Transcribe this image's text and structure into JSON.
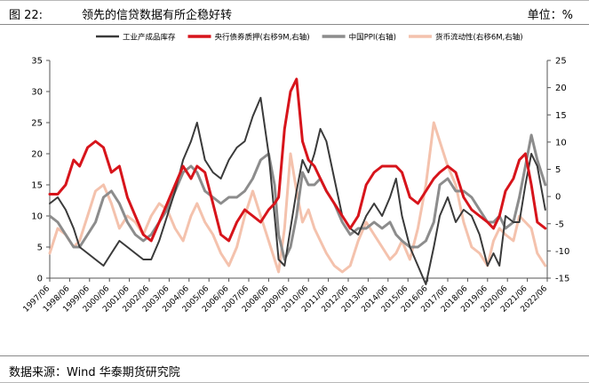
{
  "header": {
    "figure_number": "图 22:",
    "title": "领先的信贷数据有所企稳好转",
    "unit": "单位：%"
  },
  "footer": {
    "source": "数据来源：Wind 华泰期货研究院"
  },
  "colors": {
    "industrial": "#3a3a3a",
    "mlf": "#d7141b",
    "ppi": "#8c8c8c",
    "liquidity": "#f4c2ad"
  },
  "chart_data": {
    "type": "line",
    "legend_position": "top",
    "x_tick_labels": [
      "1997/06",
      "1998/06",
      "1999/06",
      "2000/06",
      "2001/06",
      "2002/06",
      "2003/06",
      "2004/06",
      "2005/06",
      "2006/06",
      "2007/06",
      "2008/06",
      "2009/06",
      "2010/06",
      "2011/06",
      "2012/06",
      "2013/06",
      "2014/06",
      "2015/06",
      "2016/06",
      "2017/06",
      "2018/06",
      "2019/06",
      "2020/06",
      "2021/06",
      "2022/06"
    ],
    "x_range": [
      1997.5,
      2022.5
    ],
    "y_left": {
      "min": 0,
      "max": 35,
      "ticks": [
        "0",
        "5",
        "10",
        "15",
        "20",
        "25",
        "30",
        "35"
      ]
    },
    "y_right": {
      "min": -15,
      "max": 25,
      "ticks": [
        "-15",
        "-10",
        "-5",
        "0",
        "5",
        "10",
        "15",
        "20",
        "25"
      ]
    },
    "series": [
      {
        "name": "工业产成品库存",
        "axis": "left",
        "color": "#3a3a3a",
        "width": 2.0,
        "x": [
          1997.5,
          1997.9,
          1998.3,
          1998.7,
          1999.0,
          1999.4,
          1999.8,
          2000.2,
          2000.6,
          2001.0,
          2001.4,
          2001.8,
          2002.2,
          2002.6,
          2003.0,
          2003.4,
          2003.8,
          2004.2,
          2004.6,
          2004.9,
          2005.3,
          2005.7,
          2006.1,
          2006.5,
          2006.9,
          2007.3,
          2007.7,
          2008.1,
          2008.5,
          2008.8,
          2009.0,
          2009.3,
          2009.6,
          2009.9,
          2010.2,
          2010.5,
          2010.8,
          2011.1,
          2011.4,
          2011.8,
          2012.2,
          2012.6,
          2013.0,
          2013.4,
          2013.8,
          2014.2,
          2014.6,
          2014.9,
          2015.2,
          2015.6,
          2016.0,
          2016.4,
          2016.8,
          2017.1,
          2017.5,
          2017.9,
          2018.3,
          2018.7,
          2019.1,
          2019.5,
          2019.8,
          2020.1,
          2020.4,
          2020.8,
          2021.1,
          2021.4,
          2021.7,
          2022.0,
          2022.4
        ],
        "y": [
          12,
          13,
          11,
          8,
          5,
          4,
          3,
          2,
          4,
          6,
          5,
          4,
          3,
          3,
          6,
          10,
          14,
          19,
          22,
          25,
          19,
          17,
          16,
          19,
          21,
          22,
          26,
          29,
          20,
          10,
          3,
          2,
          8,
          14,
          19,
          17,
          20,
          24,
          22,
          16,
          10,
          8,
          7,
          10,
          12,
          10,
          13,
          16,
          10,
          5,
          2,
          -1,
          5,
          10,
          13,
          9,
          11,
          10,
          7,
          2,
          4,
          2,
          10,
          9,
          9,
          15,
          20,
          18,
          11
        ]
      },
      {
        "name": "央行债券质押(右移9M,右轴)",
        "axis": "left",
        "color": "#d7141b",
        "width": 3.0,
        "x": [
          1997.5,
          1997.9,
          1998.3,
          1998.7,
          1999.0,
          1999.4,
          1999.8,
          2000.2,
          2000.6,
          2001.0,
          2001.4,
          2001.8,
          2002.2,
          2002.6,
          2003.0,
          2003.4,
          2003.8,
          2004.2,
          2004.6,
          2004.9,
          2005.3,
          2005.7,
          2006.1,
          2006.5,
          2006.9,
          2007.3,
          2007.7,
          2008.1,
          2008.5,
          2008.8,
          2009.0,
          2009.3,
          2009.6,
          2009.9,
          2010.2,
          2010.5,
          2010.8,
          2011.1,
          2011.4,
          2011.8,
          2012.2,
          2012.6,
          2013.0,
          2013.4,
          2013.8,
          2014.2,
          2014.6,
          2014.9,
          2015.2,
          2015.6,
          2016.0,
          2016.4,
          2016.8,
          2017.1,
          2017.5,
          2017.9,
          2018.3,
          2018.7,
          2019.1,
          2019.5,
          2019.8,
          2020.1,
          2020.4,
          2020.8,
          2021.1,
          2021.4,
          2021.7,
          2022.0,
          2022.4
        ],
        "y": [
          13.5,
          13.5,
          15,
          19,
          18,
          21,
          22,
          21,
          17,
          18,
          13,
          10,
          7,
          6,
          9,
          12,
          15,
          18,
          16,
          18,
          17,
          12,
          7,
          6,
          9,
          11,
          10,
          9,
          11,
          12,
          13,
          24,
          30,
          32,
          22,
          19,
          18,
          16,
          14,
          12,
          10,
          8,
          10,
          15,
          17,
          18,
          18,
          18,
          17,
          13,
          12,
          14,
          16,
          17,
          18,
          17,
          13,
          11,
          10,
          9,
          8,
          10,
          14,
          16,
          19,
          20,
          15,
          9,
          8
        ]
      },
      {
        "name": "中国PPI(右轴)",
        "axis": "left",
        "color": "#8c8c8c",
        "width": 3.0,
        "x": [
          1997.5,
          1997.9,
          1998.3,
          1998.7,
          1999.0,
          1999.4,
          1999.8,
          2000.2,
          2000.6,
          2001.0,
          2001.4,
          2001.8,
          2002.2,
          2002.6,
          2003.0,
          2003.4,
          2003.8,
          2004.2,
          2004.6,
          2004.9,
          2005.3,
          2005.7,
          2006.1,
          2006.5,
          2006.9,
          2007.3,
          2007.7,
          2008.1,
          2008.5,
          2008.8,
          2009.0,
          2009.3,
          2009.6,
          2009.9,
          2010.2,
          2010.5,
          2010.8,
          2011.1,
          2011.4,
          2011.8,
          2012.2,
          2012.6,
          2013.0,
          2013.4,
          2013.8,
          2014.2,
          2014.6,
          2014.9,
          2015.2,
          2015.6,
          2016.0,
          2016.4,
          2016.8,
          2017.1,
          2017.5,
          2017.9,
          2018.3,
          2018.7,
          2019.1,
          2019.5,
          2019.8,
          2020.1,
          2020.4,
          2020.8,
          2021.1,
          2021.4,
          2021.7,
          2022.0,
          2022.4
        ],
        "y": [
          10,
          9,
          7,
          5,
          5,
          7,
          9,
          13,
          14,
          12,
          9,
          7,
          6,
          7,
          9,
          11,
          14,
          17,
          18,
          17,
          14,
          13,
          12,
          13,
          13,
          14,
          16,
          19,
          20,
          15,
          7,
          3,
          5,
          10,
          17,
          15,
          15,
          16,
          14,
          12,
          9,
          7,
          8,
          8,
          9,
          8,
          9,
          7,
          6,
          5,
          5,
          6,
          9,
          15,
          16,
          14,
          14,
          13,
          11,
          9,
          9,
          10,
          8,
          9,
          13,
          18,
          23,
          19,
          15
        ]
      },
      {
        "name": "货币流动性(右移6M,右轴)",
        "axis": "left",
        "color": "#f4c2ad",
        "width": 3.0,
        "x": [
          1997.5,
          1997.9,
          1998.3,
          1998.7,
          1999.0,
          1999.4,
          1999.8,
          2000.2,
          2000.6,
          2001.0,
          2001.4,
          2001.8,
          2002.2,
          2002.6,
          2003.0,
          2003.4,
          2003.8,
          2004.2,
          2004.6,
          2004.9,
          2005.3,
          2005.7,
          2006.1,
          2006.5,
          2006.9,
          2007.3,
          2007.7,
          2008.1,
          2008.5,
          2008.8,
          2009.0,
          2009.3,
          2009.6,
          2009.9,
          2010.2,
          2010.5,
          2010.8,
          2011.1,
          2011.4,
          2011.8,
          2012.2,
          2012.6,
          2013.0,
          2013.4,
          2013.8,
          2014.2,
          2014.6,
          2014.9,
          2015.2,
          2015.6,
          2016.0,
          2016.4,
          2016.8,
          2017.1,
          2017.5,
          2017.9,
          2018.3,
          2018.7,
          2019.1,
          2019.5,
          2019.8,
          2020.1,
          2020.4,
          2020.8,
          2021.1,
          2021.4,
          2021.7,
          2022.0,
          2022.4
        ],
        "y": [
          4,
          8,
          7,
          5,
          6,
          10,
          14,
          15,
          12,
          8,
          10,
          9,
          7,
          10,
          12,
          11,
          8,
          6,
          10,
          12,
          9,
          7,
          4,
          2,
          5,
          10,
          14,
          10,
          6,
          3,
          1,
          8,
          20,
          14,
          9,
          11,
          8,
          6,
          4,
          2,
          1,
          2,
          6,
          9,
          7,
          5,
          3,
          4,
          6,
          3,
          8,
          15,
          25,
          22,
          18,
          15,
          9,
          5,
          4,
          2,
          6,
          8,
          7,
          6,
          10,
          9,
          8,
          4,
          2
        ]
      }
    ]
  }
}
